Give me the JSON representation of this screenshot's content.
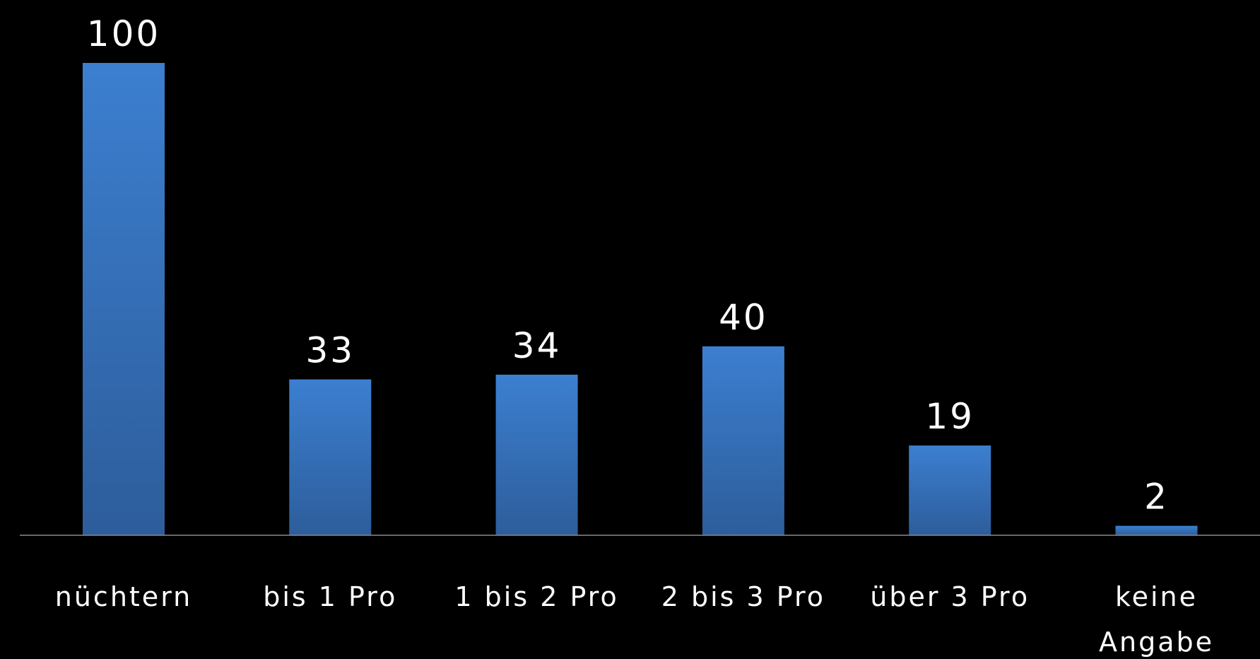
{
  "chart_data": {
    "type": "bar",
    "categories": [
      "nüchtern",
      "bis 1 Pro",
      "1 bis 2 Pro",
      "2 bis 3 Pro",
      "über 3 Pro",
      "keine Angabe"
    ],
    "values": [
      100,
      33,
      34,
      40,
      19,
      2
    ],
    "color": "#3c7fd0",
    "ylim": [
      0,
      100
    ]
  }
}
